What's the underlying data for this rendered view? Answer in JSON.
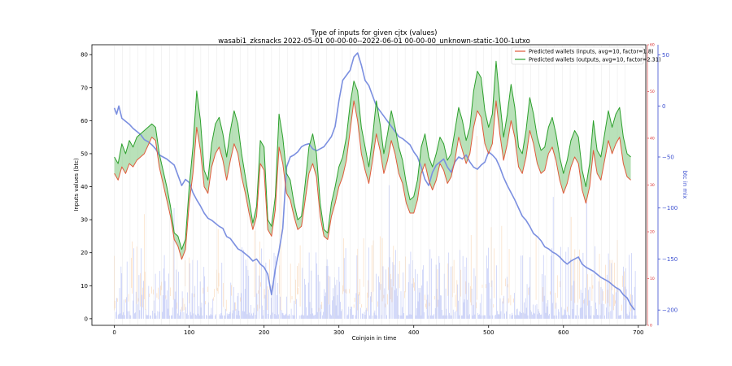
{
  "chart_data": {
    "type": "line",
    "title": "Type of inputs for given cjtx (values)",
    "subtitle": "wasabi1_zksnacks 2022-05-01 00-00-00--2022-06-01 00-00-00_unknown-static-100-1utxo",
    "xlabel": "Coinjoin in time",
    "ylabel": "Inputs values (btc)",
    "ylabel_right": "btc in mix",
    "xlim": [
      -30,
      710
    ],
    "ylim": [
      -2,
      83
    ],
    "ylim_right": [
      -215,
      60
    ],
    "ylim_red": [
      0,
      60
    ],
    "x_ticks": [
      0,
      100,
      200,
      300,
      400,
      500,
      600,
      700
    ],
    "y_ticks": [
      0,
      10,
      20,
      30,
      40,
      50,
      60,
      70,
      80
    ],
    "y_ticks_right": [
      50,
      0,
      -50,
      -100,
      -150,
      -200
    ],
    "y_ticks_red": [
      0,
      10,
      20,
      30,
      40,
      50,
      60
    ],
    "grid": false,
    "legend_position": "top-right",
    "legend": [
      "Predicted wallets (inputs, avg=10, factor=1.8)",
      "Predicted wallets (outputs, avg=10, factor=2.31)"
    ],
    "colors": {
      "inputs_line": "#e05a3a",
      "outputs_line": "#2ca02c",
      "fill_between": "#7fc97f",
      "btc_in_mix": "#7b8fe0",
      "bars_blue": "#9aa6f2",
      "bars_orange": "#f6c08a",
      "right_axis": "#3b4fd0",
      "red_axis": "#d62728"
    },
    "series": [
      {
        "name": "Predicted wallets (outputs, avg=10, factor=2.31)",
        "axis": "left",
        "x": [
          0,
          5,
          10,
          15,
          20,
          25,
          30,
          40,
          50,
          55,
          60,
          65,
          70,
          75,
          80,
          85,
          90,
          95,
          100,
          105,
          110,
          115,
          120,
          125,
          130,
          135,
          140,
          145,
          150,
          155,
          160,
          165,
          170,
          175,
          180,
          185,
          190,
          195,
          200,
          205,
          210,
          215,
          220,
          225,
          230,
          235,
          240,
          245,
          250,
          255,
          260,
          265,
          270,
          275,
          280,
          285,
          290,
          295,
          300,
          305,
          310,
          315,
          320,
          325,
          330,
          335,
          340,
          345,
          350,
          355,
          360,
          365,
          370,
          375,
          380,
          385,
          390,
          395,
          400,
          405,
          410,
          415,
          420,
          425,
          430,
          435,
          440,
          445,
          450,
          455,
          460,
          465,
          470,
          475,
          480,
          485,
          490,
          495,
          500,
          505,
          510,
          515,
          520,
          525,
          530,
          535,
          540,
          545,
          550,
          555,
          560,
          565,
          570,
          575,
          580,
          585,
          590,
          595,
          600,
          605,
          610,
          615,
          620,
          625,
          630,
          635,
          640,
          645,
          650,
          655,
          660,
          665,
          670,
          675,
          680,
          685,
          690
        ],
        "values": [
          49,
          47,
          53,
          50,
          54,
          52,
          55,
          57,
          59,
          58,
          50,
          45,
          40,
          34,
          26,
          25,
          21,
          24,
          40,
          52,
          69,
          60,
          45,
          42,
          53,
          59,
          61,
          56,
          49,
          57,
          63,
          59,
          50,
          43,
          36,
          29,
          34,
          54,
          52,
          30,
          28,
          37,
          62,
          55,
          44,
          42,
          35,
          30,
          31,
          41,
          52,
          56,
          50,
          35,
          27,
          26,
          35,
          40,
          46,
          49,
          55,
          65,
          72,
          69,
          58,
          52,
          46,
          55,
          66,
          59,
          50,
          56,
          63,
          58,
          52,
          48,
          41,
          36,
          37,
          42,
          52,
          56,
          49,
          46,
          50,
          55,
          53,
          48,
          50,
          57,
          64,
          60,
          54,
          58,
          69,
          75,
          73,
          63,
          58,
          62,
          78,
          66,
          55,
          62,
          71,
          64,
          52,
          50,
          57,
          67,
          62,
          55,
          51,
          52,
          58,
          61,
          56,
          49,
          44,
          48,
          54,
          57,
          55,
          45,
          40,
          47,
          60,
          51,
          49,
          56,
          63,
          58,
          62,
          64,
          55,
          50,
          49
        ]
      },
      {
        "name": "Predicted wallets (inputs, avg=10, factor=1.8)",
        "axis": "left",
        "x": [
          0,
          5,
          10,
          15,
          20,
          25,
          30,
          40,
          50,
          55,
          60,
          65,
          70,
          75,
          80,
          85,
          90,
          95,
          100,
          105,
          110,
          115,
          120,
          125,
          130,
          135,
          140,
          145,
          150,
          155,
          160,
          165,
          170,
          175,
          180,
          185,
          190,
          195,
          200,
          205,
          210,
          215,
          220,
          225,
          230,
          235,
          240,
          245,
          250,
          255,
          260,
          265,
          270,
          275,
          280,
          285,
          290,
          295,
          300,
          305,
          310,
          315,
          320,
          325,
          330,
          335,
          340,
          345,
          350,
          355,
          360,
          365,
          370,
          375,
          380,
          385,
          390,
          395,
          400,
          405,
          410,
          415,
          420,
          425,
          430,
          435,
          440,
          445,
          450,
          455,
          460,
          465,
          470,
          475,
          480,
          485,
          490,
          495,
          500,
          505,
          510,
          515,
          520,
          525,
          530,
          535,
          540,
          545,
          550,
          555,
          560,
          565,
          570,
          575,
          580,
          585,
          590,
          595,
          600,
          605,
          610,
          615,
          620,
          625,
          630,
          635,
          640,
          645,
          650,
          655,
          660,
          665,
          670,
          675,
          680,
          685,
          690
        ],
        "values": [
          44,
          42,
          46,
          44,
          47,
          46,
          48,
          50,
          55,
          54,
          46,
          41,
          36,
          31,
          24,
          22,
          18,
          21,
          35,
          44,
          58,
          51,
          40,
          38,
          46,
          50,
          52,
          48,
          42,
          48,
          53,
          50,
          43,
          38,
          32,
          27,
          31,
          47,
          45,
          27,
          25,
          33,
          52,
          47,
          38,
          36,
          31,
          27,
          28,
          36,
          44,
          47,
          43,
          31,
          25,
          24,
          31,
          35,
          40,
          43,
          48,
          57,
          66,
          60,
          50,
          45,
          41,
          48,
          56,
          51,
          44,
          48,
          54,
          50,
          44,
          41,
          35,
          32,
          32,
          36,
          44,
          47,
          42,
          39,
          42,
          47,
          45,
          41,
          43,
          48,
          55,
          51,
          47,
          50,
          58,
          63,
          61,
          53,
          50,
          53,
          66,
          56,
          48,
          53,
          60,
          55,
          46,
          44,
          49,
          57,
          53,
          47,
          44,
          45,
          50,
          52,
          48,
          42,
          38,
          41,
          46,
          49,
          47,
          39,
          35,
          40,
          51,
          44,
          42,
          48,
          54,
          50,
          53,
          55,
          47,
          43,
          42
        ]
      },
      {
        "name": "btc in mix",
        "axis": "right",
        "x": [
          0,
          3,
          6,
          10,
          15,
          20,
          25,
          30,
          35,
          40,
          45,
          50,
          55,
          60,
          65,
          70,
          75,
          80,
          85,
          90,
          95,
          100,
          105,
          110,
          115,
          120,
          125,
          130,
          135,
          140,
          145,
          150,
          155,
          160,
          165,
          170,
          175,
          180,
          185,
          190,
          195,
          200,
          205,
          210,
          215,
          220,
          225,
          230,
          235,
          240,
          245,
          250,
          255,
          260,
          265,
          270,
          275,
          280,
          285,
          290,
          295,
          300,
          305,
          310,
          315,
          320,
          325,
          330,
          335,
          340,
          345,
          350,
          355,
          360,
          365,
          370,
          375,
          380,
          385,
          390,
          395,
          400,
          405,
          410,
          415,
          420,
          425,
          430,
          435,
          440,
          445,
          450,
          455,
          460,
          465,
          470,
          475,
          480,
          485,
          490,
          495,
          500,
          505,
          510,
          515,
          520,
          525,
          530,
          535,
          540,
          545,
          550,
          555,
          560,
          565,
          570,
          575,
          580,
          585,
          590,
          595,
          600,
          605,
          610,
          615,
          620,
          625,
          630,
          635,
          640,
          645,
          650,
          655,
          660,
          665,
          670,
          675,
          680,
          685,
          690,
          695
        ],
        "values": [
          -2,
          -8,
          0,
          -12,
          -15,
          -18,
          -22,
          -25,
          -28,
          -33,
          -35,
          -38,
          -42,
          -48,
          -50,
          -52,
          -55,
          -58,
          -68,
          -78,
          -72,
          -75,
          -85,
          -92,
          -98,
          -105,
          -110,
          -112,
          -115,
          -118,
          -120,
          -128,
          -130,
          -135,
          -140,
          -142,
          -145,
          -148,
          -152,
          -150,
          -155,
          -158,
          -165,
          -185,
          -160,
          -142,
          -120,
          -60,
          -50,
          -48,
          -45,
          -40,
          -38,
          -37,
          -42,
          -44,
          -42,
          -40,
          -35,
          -30,
          -20,
          5,
          25,
          30,
          35,
          48,
          52,
          40,
          25,
          20,
          10,
          0,
          -5,
          -10,
          -15,
          -20,
          -25,
          -30,
          -32,
          -35,
          -38,
          -45,
          -50,
          -60,
          -72,
          -78,
          -65,
          -58,
          -55,
          -52,
          -60,
          -65,
          -55,
          -50,
          -52,
          -48,
          -55,
          -60,
          -62,
          -58,
          -55,
          -45,
          -48,
          -52,
          -60,
          -70,
          -78,
          -85,
          -92,
          -100,
          -108,
          -112,
          -118,
          -125,
          -128,
          -132,
          -138,
          -140,
          -143,
          -145,
          -148,
          -152,
          -155,
          -152,
          -150,
          -148,
          -155,
          -158,
          -160,
          -162,
          -165,
          -168,
          -170,
          -172,
          -175,
          -178,
          -180,
          -185,
          -188,
          -195,
          -200
        ]
      }
    ]
  }
}
